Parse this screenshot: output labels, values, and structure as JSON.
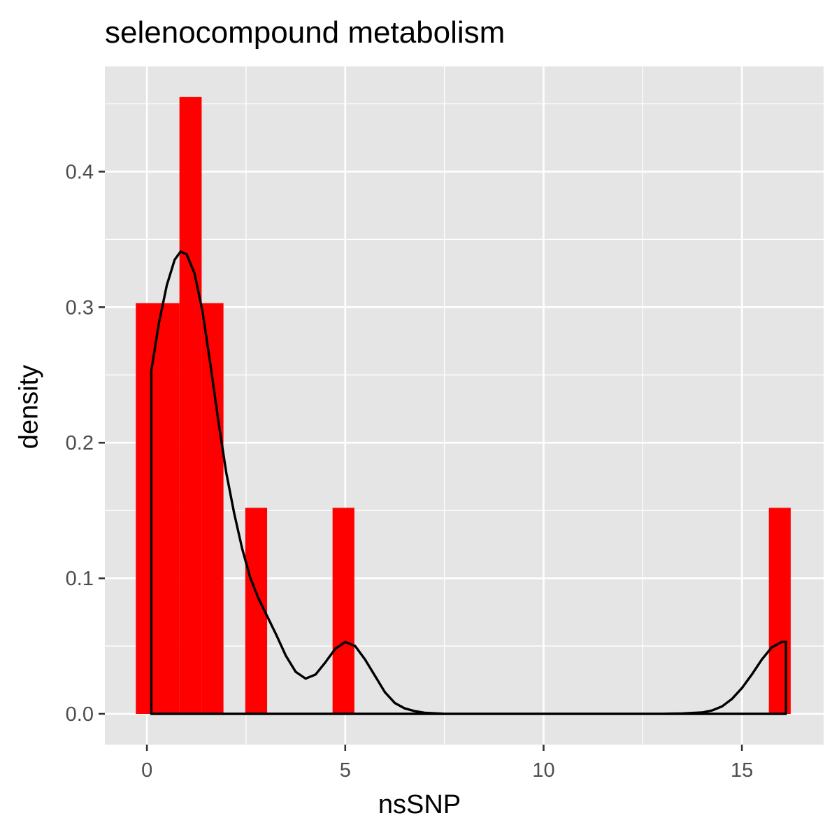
{
  "chart_data": {
    "type": "bar",
    "title": "selenocompound metabolism",
    "xlabel": "nsSNP",
    "ylabel": "density",
    "xlim": [
      -1.06,
      17.06
    ],
    "ylim": [
      -0.0227,
      0.4776
    ],
    "x_ticks": [
      0,
      5,
      10,
      15
    ],
    "x_tick_labels": [
      "0",
      "5",
      "10",
      "15"
    ],
    "y_ticks": [
      0.0,
      0.1,
      0.2,
      0.3,
      0.4
    ],
    "y_tick_labels": [
      "0.0",
      "0.1",
      "0.2",
      "0.3",
      "0.4"
    ],
    "grid": true,
    "bar_color": "#ff0000",
    "line_color": "#000000",
    "panel_color": "#e5e5e5",
    "grid_color": "#ffffff",
    "histogram": [
      {
        "x0": -0.28,
        "x1": 0.82,
        "density": 0.303
      },
      {
        "x0": 0.82,
        "x1": 1.38,
        "density": 0.455
      },
      {
        "x0": 1.38,
        "x1": 1.93,
        "density": 0.303
      },
      {
        "x0": 2.48,
        "x1": 3.03,
        "density": 0.152
      },
      {
        "x0": 4.68,
        "x1": 5.23,
        "density": 0.152
      },
      {
        "x0": 15.68,
        "x1": 16.23,
        "density": 0.152
      }
    ],
    "series": [
      {
        "type": "density",
        "x": [
          0.11,
          0.3,
          0.5,
          0.7,
          0.85,
          1.0,
          1.2,
          1.4,
          1.6,
          1.8,
          2.0,
          2.2,
          2.4,
          2.6,
          2.8,
          3.0,
          3.25,
          3.5,
          3.75,
          4.0,
          4.25,
          4.5,
          4.75,
          5.0,
          5.25,
          5.5,
          5.75,
          6.0,
          6.25,
          6.5,
          6.75,
          7.0,
          7.5,
          8.0,
          9.0,
          10.0,
          11.0,
          12.0,
          13.0,
          13.5,
          14.0,
          14.25,
          14.5,
          14.75,
          15.0,
          15.25,
          15.5,
          15.75,
          16.0,
          16.11
        ],
        "y": [
          0.253,
          0.288,
          0.316,
          0.335,
          0.341,
          0.339,
          0.325,
          0.297,
          0.258,
          0.216,
          0.178,
          0.148,
          0.122,
          0.101,
          0.086,
          0.074,
          0.059,
          0.043,
          0.031,
          0.026,
          0.029,
          0.038,
          0.048,
          0.053,
          0.05,
          0.04,
          0.028,
          0.016,
          0.008,
          0.004,
          0.002,
          0.0008,
          0.0,
          0.0,
          0.0,
          0.0,
          0.0,
          0.0,
          0.0,
          0.0003,
          0.001,
          0.0025,
          0.0055,
          0.011,
          0.019,
          0.029,
          0.04,
          0.049,
          0.053,
          0.053
        ]
      }
    ]
  }
}
